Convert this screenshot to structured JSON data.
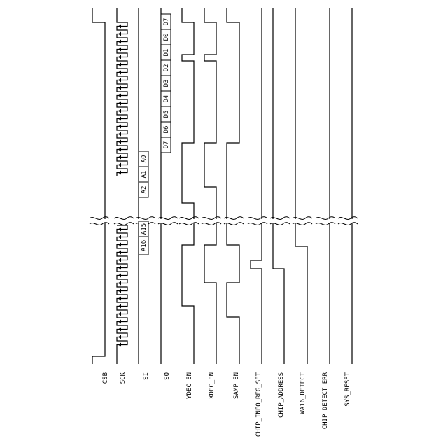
{
  "signals": [
    {
      "id": "csb",
      "label": "CSB"
    },
    {
      "id": "sck",
      "label": "SCK"
    },
    {
      "id": "si",
      "label": "SI"
    },
    {
      "id": "so",
      "label": "SO"
    },
    {
      "id": "ydec",
      "label": "YDEC_EN"
    },
    {
      "id": "xdec",
      "label": "XDEC_EN"
    },
    {
      "id": "samp",
      "label": "SAMP_EN"
    },
    {
      "id": "chip_info",
      "label": "CHIP_INFO_REG_SET"
    },
    {
      "id": "chip_addr",
      "label": "CHIP_ADDRESS"
    },
    {
      "id": "wa16",
      "label": "WA16_DETECT"
    },
    {
      "id": "chip_err",
      "label": "CHIP_DETECT_ERR"
    },
    {
      "id": "sys_reset",
      "label": "SYS_RESET"
    }
  ],
  "si_bits": [
    "A0",
    "A1",
    "A2",
    "A15",
    "A16"
  ],
  "so_bits": [
    "D7",
    "D0",
    "D1",
    "D2",
    "D3",
    "D4",
    "D5",
    "D6",
    "D7"
  ]
}
